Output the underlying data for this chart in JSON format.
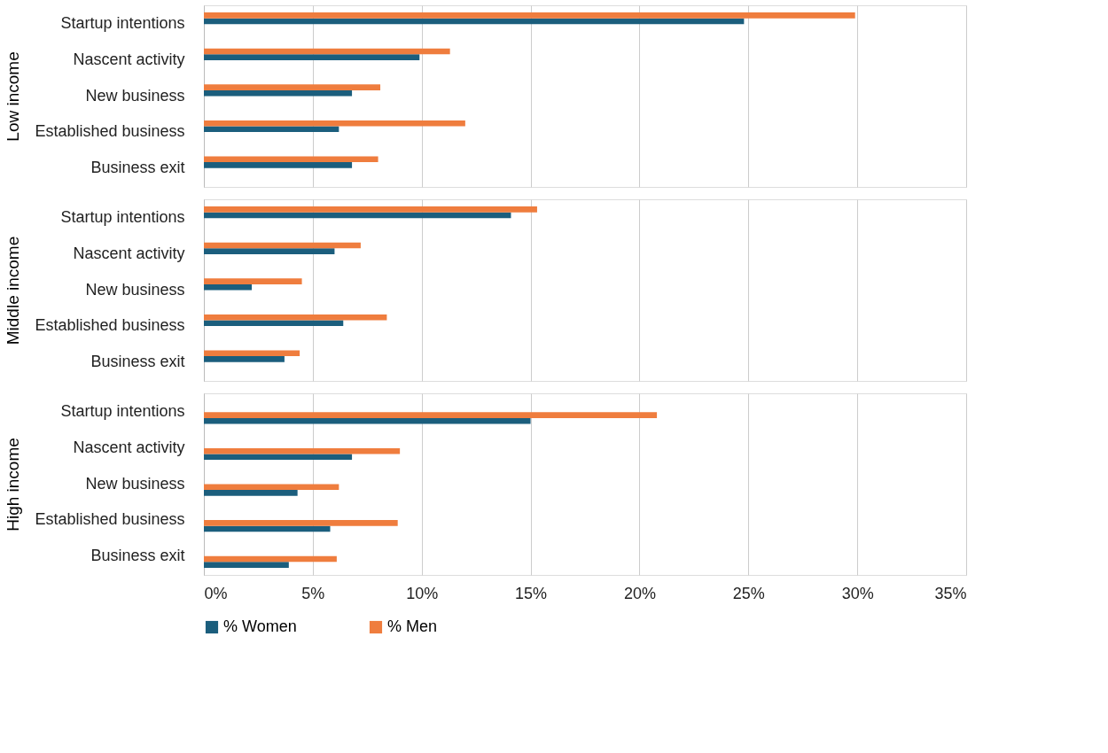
{
  "chart_data": [
    {
      "type": "bar",
      "orientation": "horizontal",
      "ylabel": "Low income",
      "categories": [
        "Startup intentions",
        "Nascent activity",
        "New business",
        "Established business",
        "Business exit"
      ],
      "series": [
        {
          "color": "#1b5e7d",
          "values": [
            24.8,
            9.9,
            6.8,
            6.2,
            6.8
          ]
        },
        {
          "color": "#ef7d3e",
          "values": [
            29.9,
            11.3,
            8.1,
            12.0,
            8.0
          ]
        }
      ],
      "xlim": [
        0,
        35
      ],
      "xticks": [
        {
          "value": 0,
          "label": null
        },
        {
          "value": 5,
          "label": null
        },
        {
          "value": 10,
          "label": null
        },
        {
          "value": 15,
          "label": null
        },
        {
          "value": 20,
          "label": null
        },
        {
          "value": 25,
          "label": null
        },
        {
          "value": 30,
          "label": null
        },
        {
          "value": 35,
          "label": null
        }
      ],
      "tick_labels": "y",
      "grid": "x",
      "legend": false
    },
    {
      "type": "bar",
      "orientation": "horizontal",
      "ylabel": "Middle income",
      "categories": [
        "Startup intentions",
        "Nascent activity",
        "New business",
        "Established business",
        "Business exit"
      ],
      "series": [
        {
          "color": "#1b5e7d",
          "values": [
            14.1,
            6.0,
            2.2,
            6.4,
            3.7
          ]
        },
        {
          "color": "#ef7d3e",
          "values": [
            15.3,
            7.2,
            4.5,
            8.4,
            4.4
          ]
        }
      ],
      "xlim": [
        0,
        35
      ],
      "xticks": [
        {
          "value": 0,
          "label": null
        },
        {
          "value": 5,
          "label": null
        },
        {
          "value": 10,
          "label": null
        },
        {
          "value": 15,
          "label": null
        },
        {
          "value": 20,
          "label": null
        },
        {
          "value": 25,
          "label": null
        },
        {
          "value": 30,
          "label": null
        },
        {
          "value": 35,
          "label": null
        }
      ],
      "tick_labels": "y",
      "grid": "x",
      "legend": false
    },
    {
      "type": "bar",
      "orientation": "horizontal",
      "ylabel": "High income",
      "categories": [
        "Startup intentions",
        "Nascent activity",
        "New business",
        "Established business",
        "Business exit"
      ],
      "series": [
        {
          "name": "% Women",
          "color": "#1b5e7d",
          "values": [
            15.0,
            6.8,
            4.3,
            5.8,
            3.9
          ]
        },
        {
          "name": "% Men",
          "color": "#ef7d3e",
          "values": [
            20.8,
            9.0,
            6.2,
            8.9,
            6.1
          ]
        }
      ],
      "xlim": [
        0,
        35
      ],
      "xticks": [
        {
          "value": 0,
          "label": "0%"
        },
        {
          "value": 5,
          "label": "5%"
        },
        {
          "value": 10,
          "label": "10%"
        },
        {
          "value": 15,
          "label": "15%"
        },
        {
          "value": 20,
          "label": "20%"
        },
        {
          "value": 25,
          "label": "25%"
        },
        {
          "value": 30,
          "label": "30%"
        },
        {
          "value": 35,
          "label": "35%"
        }
      ],
      "grid": "x",
      "legend": "bottom left"
    }
  ]
}
